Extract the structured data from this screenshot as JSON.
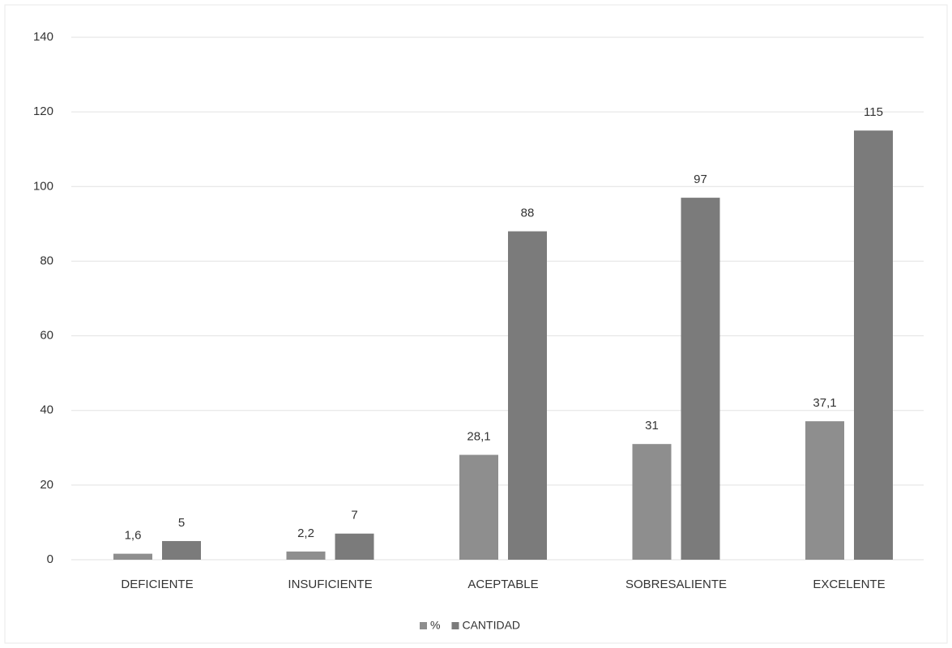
{
  "chart_data": {
    "type": "bar",
    "categories": [
      "DEFICIENTE",
      "INSUFICIENTE",
      "ACEPTABLE",
      "SOBRESALIENTE",
      "EXCELENTE"
    ],
    "series": [
      {
        "name": "%",
        "color": "#8e8e8e",
        "values": [
          1.6,
          2.2,
          28.1,
          31,
          37.1
        ],
        "value_labels": [
          "1,6",
          "2,2",
          "28,1",
          "31",
          "37,1"
        ]
      },
      {
        "name": "CANTIDAD",
        "color": "#7b7b7b",
        "values": [
          5,
          7,
          88,
          97,
          115
        ]
      }
    ],
    "ylim": [
      0,
      140
    ],
    "yticks": [
      0,
      20,
      40,
      60,
      80,
      100,
      120,
      140
    ],
    "grid": true,
    "legend": "bottom"
  }
}
